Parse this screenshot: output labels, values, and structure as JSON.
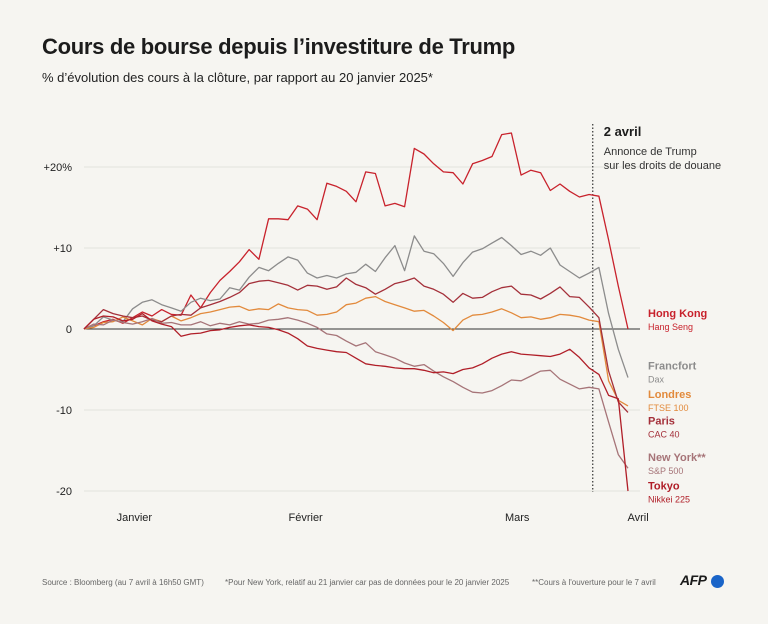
{
  "header": {
    "title": "Cours de bourse depuis l’investiture de Trump",
    "subtitle": "% d’évolution des cours à la clôture, par rapport au 20 janvier 2025*"
  },
  "chart_data": {
    "type": "line",
    "ylim": [
      -20,
      25
    ],
    "yticks": [
      {
        "value": 20,
        "label": "+20%"
      },
      {
        "value": 10,
        "label": "+10"
      },
      {
        "value": 0,
        "label": "0"
      },
      {
        "value": -10,
        "label": "-10"
      },
      {
        "value": -20,
        "label": "-20"
      }
    ],
    "xlim": [
      0,
      54
    ],
    "xticks": [
      {
        "value": 5,
        "label": "Janvier"
      },
      {
        "value": 22,
        "label": "Février"
      },
      {
        "value": 43,
        "label": "Mars"
      },
      {
        "value": 55,
        "label": "Avril"
      }
    ],
    "annotation": {
      "x": 50.5,
      "date": "2 avril",
      "lines": [
        "Annonce de Trump",
        "sur les droits de douane"
      ]
    },
    "series": [
      {
        "name": "Hong Kong",
        "sub": "Hang Seng",
        "color": "#c8222c",
        "label_y": 1.0,
        "values": [
          0,
          0.4,
          0.9,
          1.2,
          0.7,
          1.4,
          2.1,
          1.6,
          2.4,
          1.8,
          1.7,
          4.2,
          2.6,
          4.5,
          6.0,
          7.1,
          8.3,
          9.8,
          8.6,
          13.6,
          13.6,
          13.5,
          15.2,
          14.8,
          13.5,
          18.0,
          17.6,
          17.0,
          15.7,
          19.4,
          19.2,
          15.2,
          15.5,
          15.1,
          22.3,
          21.6,
          20.4,
          19.4,
          19.3,
          17.9,
          20.4,
          20.8,
          21.3,
          24.0,
          24.2,
          19.0,
          19.6,
          19.3,
          17.1,
          17.9,
          17.0,
          16.3,
          16.6,
          16.4,
          11.0,
          5.3,
          0
        ]
      },
      {
        "name": "Francfort",
        "sub": "Dax",
        "color": "#8c8c8c",
        "label_y": -5.5,
        "values": [
          0,
          0.4,
          1.5,
          1.1,
          0.9,
          2.5,
          3.3,
          3.6,
          3.0,
          2.6,
          2.2,
          3.3,
          3.8,
          3.5,
          3.7,
          5.1,
          4.8,
          6.4,
          7.6,
          7.2,
          8.1,
          8.9,
          8.5,
          6.9,
          6.3,
          6.6,
          6.3,
          6.8,
          7.0,
          8.0,
          7.1,
          8.8,
          10.3,
          7.2,
          11.5,
          9.6,
          9.3,
          8.1,
          6.5,
          8.2,
          9.5,
          9.9,
          10.6,
          11.3,
          10.3,
          9.2,
          9.6,
          9.1,
          10.0,
          7.9,
          7.1,
          6.3,
          6.9,
          7.6,
          1.9,
          -2.5,
          -6
        ]
      },
      {
        "name": "Londres",
        "sub": "FTSE 100",
        "color": "#e28a3c",
        "label_y": -9.0,
        "values": [
          0,
          0.2,
          0.8,
          0.9,
          1.5,
          1.0,
          0.5,
          1.3,
          0.9,
          1.6,
          1.0,
          1.4,
          1.9,
          2.1,
          2.4,
          2.7,
          2.8,
          2.3,
          2.5,
          2.4,
          3.1,
          2.6,
          2.4,
          2.3,
          1.7,
          1.8,
          2.1,
          3.0,
          3.2,
          3.8,
          4.0,
          3.4,
          3.0,
          2.6,
          2.2,
          2.3,
          1.6,
          0.8,
          -0.2,
          1.1,
          1.7,
          1.8,
          2.1,
          2.5,
          2.0,
          1.4,
          1.5,
          1.2,
          1.4,
          1.8,
          1.7,
          1.5,
          1.1,
          0.9,
          -6.4,
          -8.8,
          -9.5
        ]
      },
      {
        "name": "Paris",
        "sub": "CAC 40",
        "color": "#a4303a",
        "label_y": -12.3,
        "values": [
          0,
          1.2,
          2.4,
          1.9,
          1.6,
          1.4,
          1.6,
          1.1,
          0.9,
          1.6,
          1.8,
          1.7,
          2.6,
          3.0,
          3.4,
          3.9,
          4.5,
          5.6,
          5.9,
          6.0,
          5.7,
          5.4,
          4.8,
          5.4,
          5.3,
          4.9,
          5.2,
          6.3,
          5.5,
          5.1,
          4.3,
          4.9,
          5.6,
          5.9,
          6.3,
          5.3,
          4.9,
          4.3,
          3.3,
          4.4,
          3.8,
          3.9,
          4.6,
          5.1,
          5.3,
          4.3,
          4.2,
          3.7,
          4.4,
          5.2,
          4.0,
          3.9,
          2.7,
          1.4,
          -5.2,
          -9.0,
          -10.3
        ]
      },
      {
        "name": "New York**",
        "sub": "S&P 500",
        "color": "#a67478",
        "label_y": -16.8,
        "values": [
          0,
          0.6,
          0.5,
          1.1,
          0.8,
          0.6,
          0.9,
          1.3,
          0.7,
          0.8,
          0.5,
          0.5,
          0.9,
          0.4,
          0.7,
          0.5,
          0.9,
          0.6,
          0.7,
          1.1,
          1.2,
          1.4,
          1.1,
          0.7,
          0.2,
          -0.6,
          -0.8,
          -1.5,
          -2.1,
          -1.7,
          -2.8,
          -3.2,
          -3.6,
          -4.2,
          -4.6,
          -4.4,
          -5.2,
          -5.9,
          -6.5,
          -7.2,
          -7.8,
          -7.9,
          -7.6,
          -7.0,
          -6.3,
          -6.4,
          -5.8,
          -5.2,
          -5.1,
          -6.2,
          -6.8,
          -7.4,
          -7.2,
          -7.4,
          -11.5,
          -15.5,
          -17.2
        ]
      },
      {
        "name": "Tokyo",
        "sub": "Nikkei 225",
        "color": "#b01e28",
        "label_y": -20.3,
        "values": [
          0,
          1.2,
          1.6,
          1.5,
          1.0,
          1.2,
          1.9,
          1.0,
          0.6,
          0.3,
          -0.9,
          -0.6,
          -0.5,
          -0.2,
          -0.1,
          0.2,
          0.4,
          0.5,
          0.3,
          0.2,
          -0.1,
          -0.5,
          -1.2,
          -2.1,
          -2.4,
          -2.6,
          -2.8,
          -2.9,
          -3.6,
          -4.3,
          -4.5,
          -4.6,
          -4.8,
          -4.9,
          -4.9,
          -5.1,
          -5.4,
          -5.3,
          -5.5,
          -5.0,
          -4.8,
          -4.3,
          -3.6,
          -3.1,
          -2.8,
          -3.1,
          -3.2,
          -3.3,
          -3.4,
          -3.1,
          -2.5,
          -3.5,
          -4.8,
          -5.6,
          -8.2,
          -8.6,
          -20
        ]
      }
    ]
  },
  "footer": {
    "source": "Source : Bloomberg (au 7 avril à 16h50 GMT)",
    "note1": "*Pour New York, relatif au 21 janvier car pas de données pour le 20 janvier 2025",
    "note2": "**Cours à l'ouverture pour le 7 avril",
    "logo": "AFP"
  }
}
